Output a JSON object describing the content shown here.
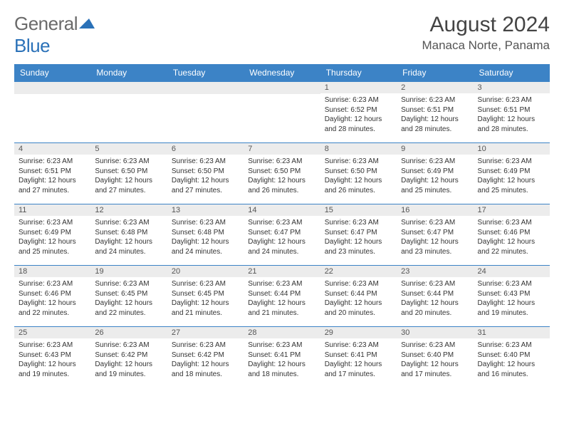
{
  "logo": {
    "general": "General",
    "blue": "Blue",
    "shape_color": "#2a71b8"
  },
  "title": "August 2024",
  "location": "Manaca Norte, Panama",
  "colors": {
    "header_bg": "#3c83c6",
    "header_text": "#ffffff",
    "daynum_bg": "#ececec",
    "border": "#3c83c6",
    "text": "#333333"
  },
  "weekdays": [
    "Sunday",
    "Monday",
    "Tuesday",
    "Wednesday",
    "Thursday",
    "Friday",
    "Saturday"
  ],
  "weeks": [
    [
      null,
      null,
      null,
      null,
      {
        "n": "1",
        "sr": "Sunrise: 6:23 AM",
        "ss": "Sunset: 6:52 PM",
        "d1": "Daylight: 12 hours",
        "d2": "and 28 minutes."
      },
      {
        "n": "2",
        "sr": "Sunrise: 6:23 AM",
        "ss": "Sunset: 6:51 PM",
        "d1": "Daylight: 12 hours",
        "d2": "and 28 minutes."
      },
      {
        "n": "3",
        "sr": "Sunrise: 6:23 AM",
        "ss": "Sunset: 6:51 PM",
        "d1": "Daylight: 12 hours",
        "d2": "and 28 minutes."
      }
    ],
    [
      {
        "n": "4",
        "sr": "Sunrise: 6:23 AM",
        "ss": "Sunset: 6:51 PM",
        "d1": "Daylight: 12 hours",
        "d2": "and 27 minutes."
      },
      {
        "n": "5",
        "sr": "Sunrise: 6:23 AM",
        "ss": "Sunset: 6:50 PM",
        "d1": "Daylight: 12 hours",
        "d2": "and 27 minutes."
      },
      {
        "n": "6",
        "sr": "Sunrise: 6:23 AM",
        "ss": "Sunset: 6:50 PM",
        "d1": "Daylight: 12 hours",
        "d2": "and 27 minutes."
      },
      {
        "n": "7",
        "sr": "Sunrise: 6:23 AM",
        "ss": "Sunset: 6:50 PM",
        "d1": "Daylight: 12 hours",
        "d2": "and 26 minutes."
      },
      {
        "n": "8",
        "sr": "Sunrise: 6:23 AM",
        "ss": "Sunset: 6:50 PM",
        "d1": "Daylight: 12 hours",
        "d2": "and 26 minutes."
      },
      {
        "n": "9",
        "sr": "Sunrise: 6:23 AM",
        "ss": "Sunset: 6:49 PM",
        "d1": "Daylight: 12 hours",
        "d2": "and 25 minutes."
      },
      {
        "n": "10",
        "sr": "Sunrise: 6:23 AM",
        "ss": "Sunset: 6:49 PM",
        "d1": "Daylight: 12 hours",
        "d2": "and 25 minutes."
      }
    ],
    [
      {
        "n": "11",
        "sr": "Sunrise: 6:23 AM",
        "ss": "Sunset: 6:49 PM",
        "d1": "Daylight: 12 hours",
        "d2": "and 25 minutes."
      },
      {
        "n": "12",
        "sr": "Sunrise: 6:23 AM",
        "ss": "Sunset: 6:48 PM",
        "d1": "Daylight: 12 hours",
        "d2": "and 24 minutes."
      },
      {
        "n": "13",
        "sr": "Sunrise: 6:23 AM",
        "ss": "Sunset: 6:48 PM",
        "d1": "Daylight: 12 hours",
        "d2": "and 24 minutes."
      },
      {
        "n": "14",
        "sr": "Sunrise: 6:23 AM",
        "ss": "Sunset: 6:47 PM",
        "d1": "Daylight: 12 hours",
        "d2": "and 24 minutes."
      },
      {
        "n": "15",
        "sr": "Sunrise: 6:23 AM",
        "ss": "Sunset: 6:47 PM",
        "d1": "Daylight: 12 hours",
        "d2": "and 23 minutes."
      },
      {
        "n": "16",
        "sr": "Sunrise: 6:23 AM",
        "ss": "Sunset: 6:47 PM",
        "d1": "Daylight: 12 hours",
        "d2": "and 23 minutes."
      },
      {
        "n": "17",
        "sr": "Sunrise: 6:23 AM",
        "ss": "Sunset: 6:46 PM",
        "d1": "Daylight: 12 hours",
        "d2": "and 22 minutes."
      }
    ],
    [
      {
        "n": "18",
        "sr": "Sunrise: 6:23 AM",
        "ss": "Sunset: 6:46 PM",
        "d1": "Daylight: 12 hours",
        "d2": "and 22 minutes."
      },
      {
        "n": "19",
        "sr": "Sunrise: 6:23 AM",
        "ss": "Sunset: 6:45 PM",
        "d1": "Daylight: 12 hours",
        "d2": "and 22 minutes."
      },
      {
        "n": "20",
        "sr": "Sunrise: 6:23 AM",
        "ss": "Sunset: 6:45 PM",
        "d1": "Daylight: 12 hours",
        "d2": "and 21 minutes."
      },
      {
        "n": "21",
        "sr": "Sunrise: 6:23 AM",
        "ss": "Sunset: 6:44 PM",
        "d1": "Daylight: 12 hours",
        "d2": "and 21 minutes."
      },
      {
        "n": "22",
        "sr": "Sunrise: 6:23 AM",
        "ss": "Sunset: 6:44 PM",
        "d1": "Daylight: 12 hours",
        "d2": "and 20 minutes."
      },
      {
        "n": "23",
        "sr": "Sunrise: 6:23 AM",
        "ss": "Sunset: 6:44 PM",
        "d1": "Daylight: 12 hours",
        "d2": "and 20 minutes."
      },
      {
        "n": "24",
        "sr": "Sunrise: 6:23 AM",
        "ss": "Sunset: 6:43 PM",
        "d1": "Daylight: 12 hours",
        "d2": "and 19 minutes."
      }
    ],
    [
      {
        "n": "25",
        "sr": "Sunrise: 6:23 AM",
        "ss": "Sunset: 6:43 PM",
        "d1": "Daylight: 12 hours",
        "d2": "and 19 minutes."
      },
      {
        "n": "26",
        "sr": "Sunrise: 6:23 AM",
        "ss": "Sunset: 6:42 PM",
        "d1": "Daylight: 12 hours",
        "d2": "and 19 minutes."
      },
      {
        "n": "27",
        "sr": "Sunrise: 6:23 AM",
        "ss": "Sunset: 6:42 PM",
        "d1": "Daylight: 12 hours",
        "d2": "and 18 minutes."
      },
      {
        "n": "28",
        "sr": "Sunrise: 6:23 AM",
        "ss": "Sunset: 6:41 PM",
        "d1": "Daylight: 12 hours",
        "d2": "and 18 minutes."
      },
      {
        "n": "29",
        "sr": "Sunrise: 6:23 AM",
        "ss": "Sunset: 6:41 PM",
        "d1": "Daylight: 12 hours",
        "d2": "and 17 minutes."
      },
      {
        "n": "30",
        "sr": "Sunrise: 6:23 AM",
        "ss": "Sunset: 6:40 PM",
        "d1": "Daylight: 12 hours",
        "d2": "and 17 minutes."
      },
      {
        "n": "31",
        "sr": "Sunrise: 6:23 AM",
        "ss": "Sunset: 6:40 PM",
        "d1": "Daylight: 12 hours",
        "d2": "and 16 minutes."
      }
    ]
  ]
}
